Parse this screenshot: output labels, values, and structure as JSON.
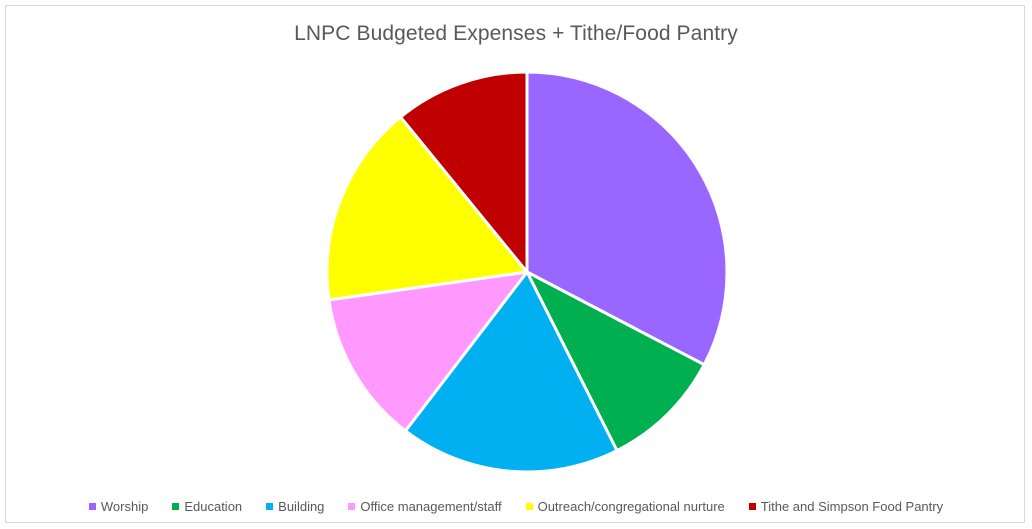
{
  "chart_data": {
    "type": "pie",
    "title": "LNPC Budgeted Expenses + Tithe/Food Pantry",
    "legend_position": "bottom",
    "categories": [
      "Worship",
      "Education",
      "Building",
      "Office management/staff",
      "Outreach/congregational nurture",
      "Tithe and Simpson Food Pantry"
    ],
    "values": [
      33,
      10,
      18,
      12.5,
      16.5,
      11
    ],
    "colors": [
      "#9966ff",
      "#00b050",
      "#00b0f0",
      "#ff99ff",
      "#ffff00",
      "#c00000"
    ]
  }
}
